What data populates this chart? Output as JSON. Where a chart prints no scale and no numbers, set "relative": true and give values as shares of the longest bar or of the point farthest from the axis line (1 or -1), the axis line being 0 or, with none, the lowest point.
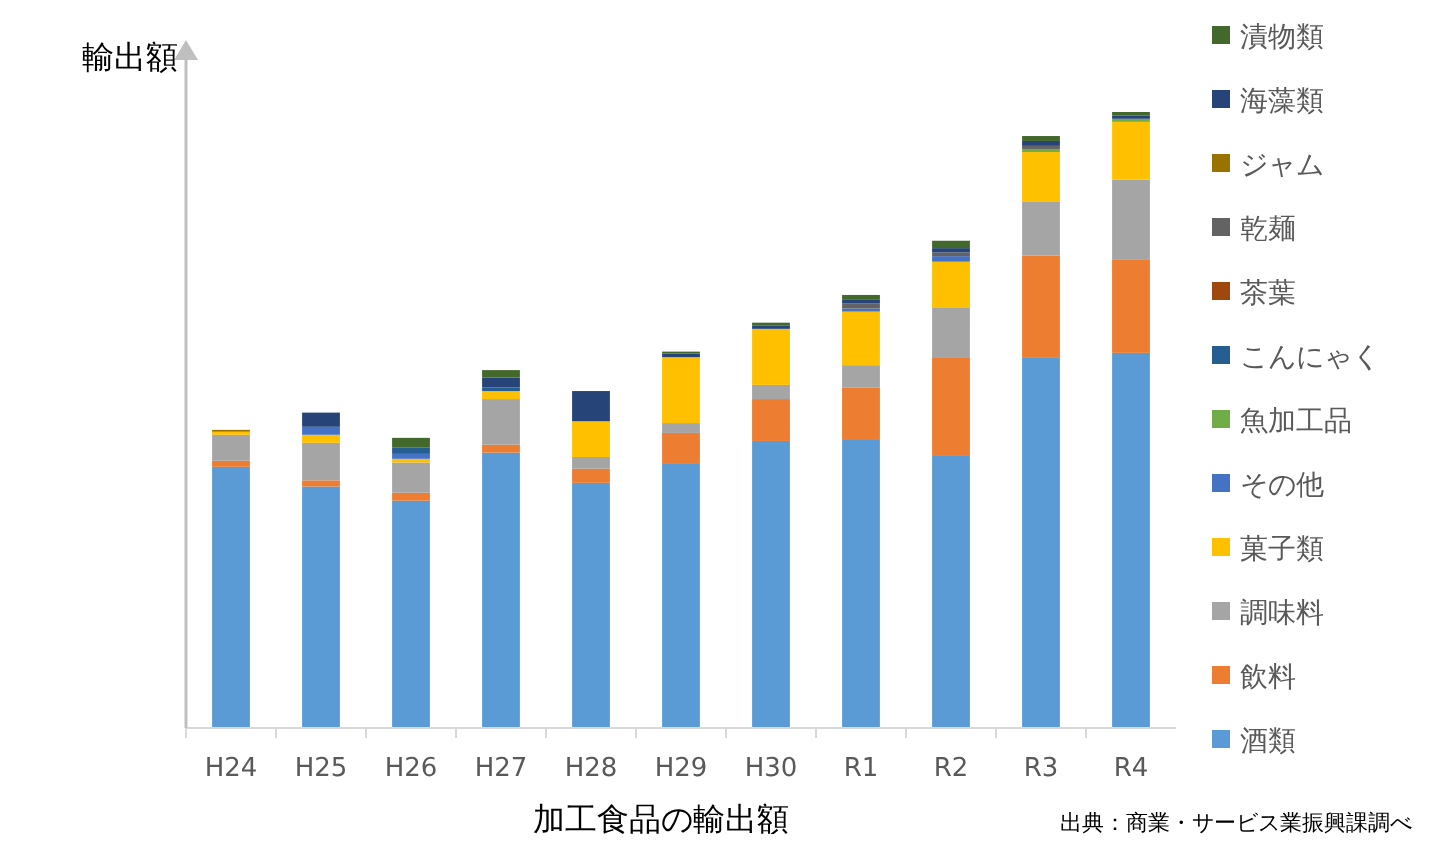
{
  "chart_data": {
    "type": "bar",
    "stacked": true,
    "relative": true,
    "xlabel": "加工食品の輸出額",
    "ylabel": "輸出額",
    "legend": "right",
    "categories": [
      "H24",
      "H25",
      "H26",
      "H27",
      "H28",
      "H29",
      "H30",
      "R1",
      "R2",
      "R3",
      "R4"
    ],
    "series": [
      {
        "name": "酒類",
        "color": "#5b9bd5",
        "values": [
          0.424,
          0.392,
          0.369,
          0.447,
          0.398,
          0.43,
          0.466,
          0.469,
          0.443,
          0.602,
          0.609
        ]
      },
      {
        "name": "飲料",
        "color": "#ed7d31",
        "values": [
          0.01,
          0.01,
          0.013,
          0.013,
          0.023,
          0.049,
          0.068,
          0.084,
          0.159,
          0.165,
          0.152
        ]
      },
      {
        "name": "調味料",
        "color": "#a5a5a5",
        "values": [
          0.042,
          0.061,
          0.049,
          0.074,
          0.019,
          0.016,
          0.023,
          0.036,
          0.081,
          0.087,
          0.129
        ]
      },
      {
        "name": "菓子類",
        "color": "#ffc000",
        "values": [
          0.005,
          0.013,
          0.006,
          0.013,
          0.058,
          0.107,
          0.091,
          0.087,
          0.074,
          0.081,
          0.094
        ]
      },
      {
        "name": "その他",
        "color": "#4472c4",
        "values": [
          null,
          0.013,
          0.008,
          null,
          null,
          null,
          null,
          0.005,
          0.009,
          null,
          null
        ]
      },
      {
        "name": "魚加工品",
        "color": "#70ad47",
        "values": [
          null,
          null,
          null,
          null,
          null,
          null,
          null,
          null,
          null,
          0.005,
          0.005
        ]
      },
      {
        "name": "こんにゃく",
        "color": "#255e91",
        "values": [
          null,
          null,
          0.01,
          0.006,
          null,
          null,
          null,
          null,
          null,
          null,
          null
        ]
      },
      {
        "name": "茶葉",
        "color": "#9e480e",
        "values": [
          null,
          null,
          null,
          null,
          null,
          null,
          null,
          null,
          null,
          null,
          null
        ]
      },
      {
        "name": "乾麺",
        "color": "#636363",
        "values": [
          null,
          null,
          null,
          null,
          null,
          null,
          null,
          0.008,
          0.006,
          0.005,
          null
        ]
      },
      {
        "name": "ジャム",
        "color": "#997300",
        "values": [
          0.003,
          null,
          null,
          null,
          null,
          null,
          null,
          null,
          null,
          null,
          null
        ]
      },
      {
        "name": "海藻類",
        "color": "#264478",
        "values": [
          null,
          0.023,
          null,
          0.016,
          0.049,
          0.006,
          0.005,
          0.006,
          0.007,
          0.008,
          0.005
        ]
      },
      {
        "name": "漬物類",
        "color": "#43682b",
        "values": [
          null,
          null,
          0.016,
          0.012,
          null,
          0.003,
          0.005,
          0.008,
          0.012,
          0.008,
          0.006
        ]
      }
    ],
    "annotations": [
      "出典：商業・サービス業振興課調べ"
    ]
  }
}
